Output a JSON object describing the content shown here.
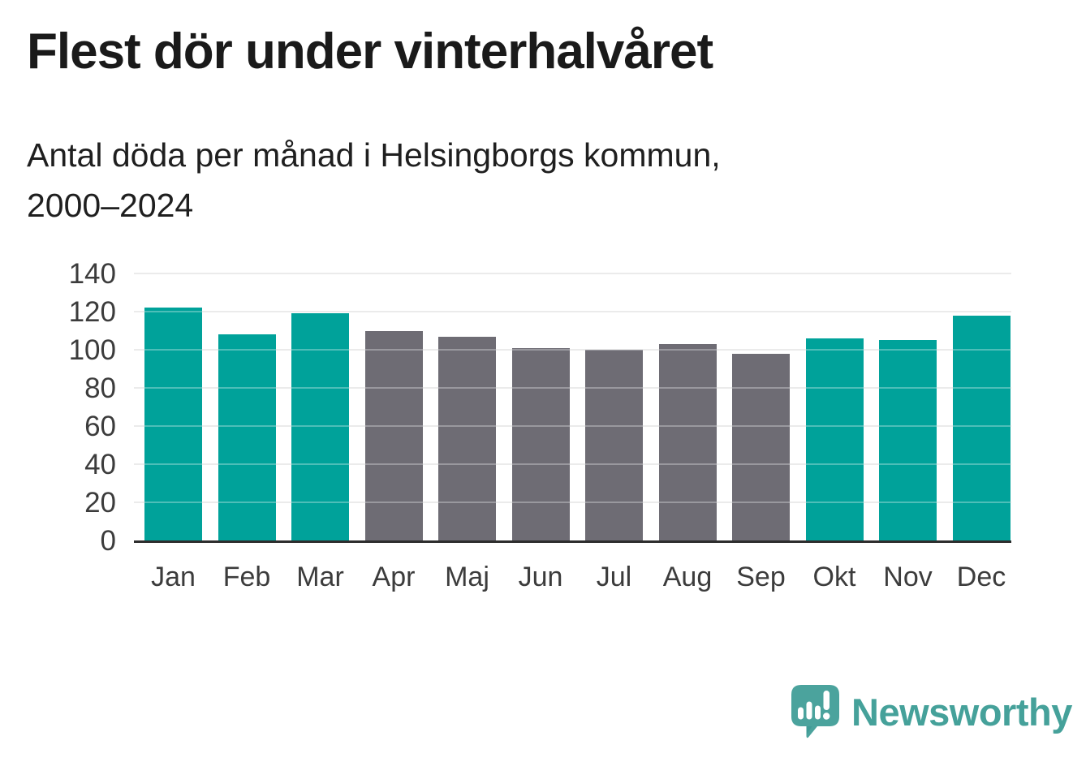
{
  "header": {
    "title": "Flest dör under vinterhalvåret",
    "subtitle_line1": "Antal döda per månad i Helsingborgs kommun,",
    "subtitle_line2": "2000–2024"
  },
  "chart_data": {
    "type": "bar",
    "title": "Flest dör under vinterhalvåret",
    "subtitle": "Antal döda per månad i Helsingborgs kommun, 2000–2024",
    "categories": [
      "Jan",
      "Feb",
      "Mar",
      "Apr",
      "Maj",
      "Jun",
      "Jul",
      "Aug",
      "Sep",
      "Okt",
      "Nov",
      "Dec"
    ],
    "values": [
      122,
      108,
      119,
      110,
      107,
      101,
      100,
      103,
      98,
      106,
      105,
      118
    ],
    "bar_colors": [
      "#00A29A",
      "#00A29A",
      "#00A29A",
      "#6E6C74",
      "#6E6C74",
      "#6E6C74",
      "#6E6C74",
      "#6E6C74",
      "#6E6C74",
      "#00A29A",
      "#00A29A",
      "#00A29A"
    ],
    "highlight_color": "#00A29A",
    "base_color": "#6E6C74",
    "xlabel": "",
    "ylabel": "",
    "ylim": [
      0,
      140
    ],
    "yticks": [
      0,
      20,
      40,
      60,
      80,
      100,
      120,
      140
    ],
    "grid": true,
    "legend": false
  },
  "footer": {
    "brand": "Newsworthy",
    "brand_color": "#45A19A",
    "logo_icon": "speech-bubble-bar-chart-icon"
  },
  "colors": {
    "title_text": "#1A1A1A",
    "axis_text": "#3C3C3C",
    "axis_line": "#2D2D2D",
    "gridline": "#E3E3E3",
    "background": "#FFFFFF"
  }
}
